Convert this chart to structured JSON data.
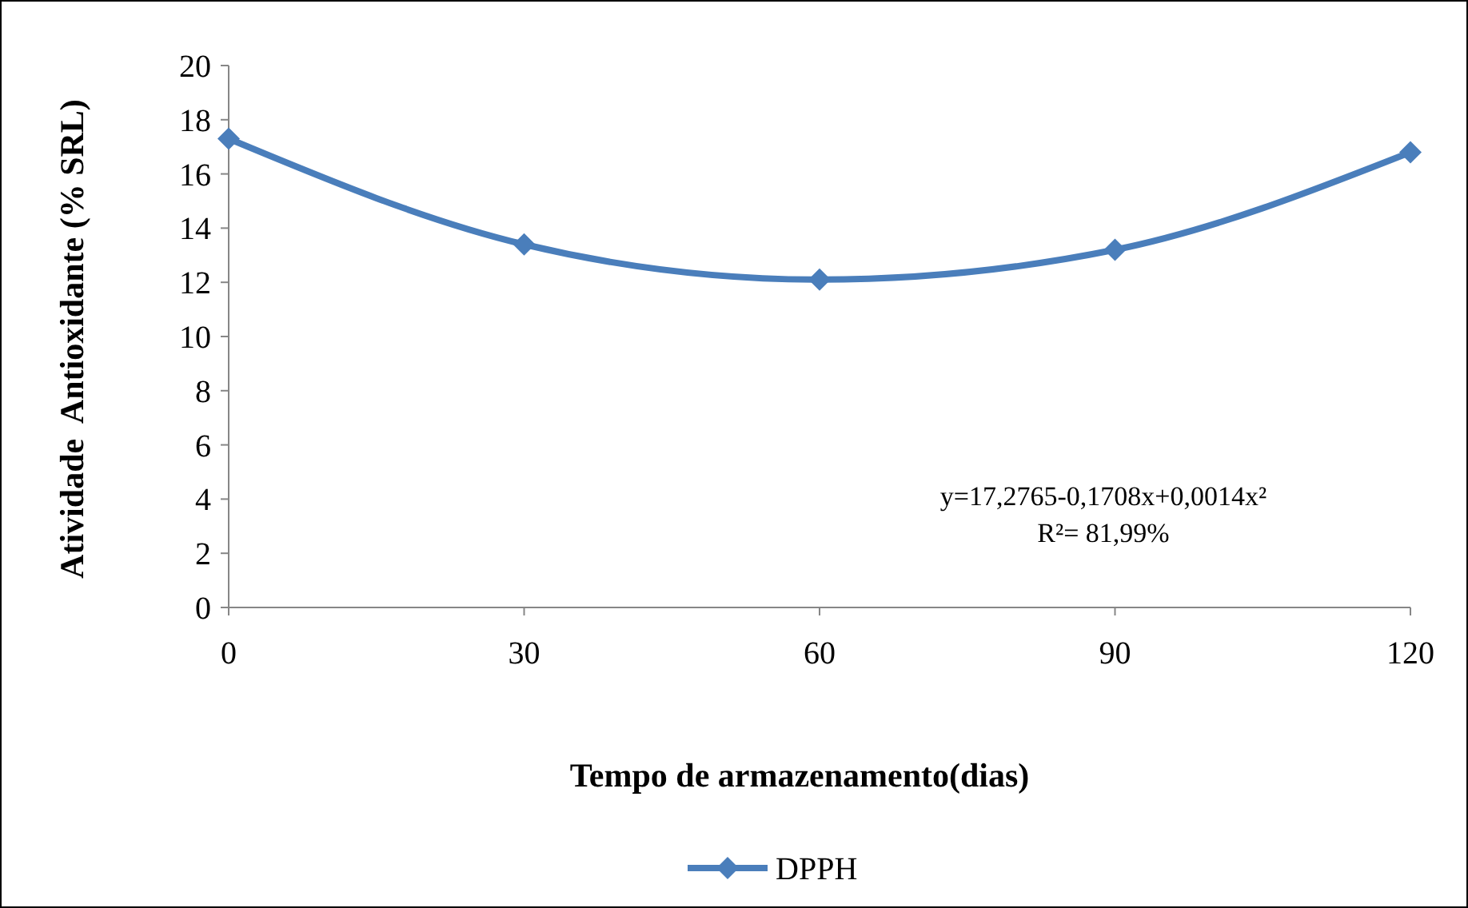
{
  "chart_data": {
    "type": "line",
    "xlabel": "Tempo de armazenamento(dias)",
    "ylabel": "Atividade  Antioxidante (% SRL)",
    "x": [
      0,
      30,
      60,
      90,
      120
    ],
    "series": [
      {
        "name": "DPPH",
        "color": "#4a7ebb",
        "values": [
          17.3,
          13.4,
          12.1,
          13.2,
          16.8
        ]
      }
    ],
    "xlim": [
      0,
      120
    ],
    "xticks": [
      0,
      30,
      60,
      90,
      120
    ],
    "ylim": [
      0,
      20
    ],
    "yticks": [
      0,
      2,
      4,
      6,
      8,
      10,
      12,
      14,
      16,
      18,
      20
    ],
    "marker": "diamond",
    "line_style": "solid",
    "legend": "bottom",
    "grid": false,
    "annotations": [
      "y=17,2765-0,1708x+0,0014x²",
      "R²= 81,99%"
    ]
  }
}
